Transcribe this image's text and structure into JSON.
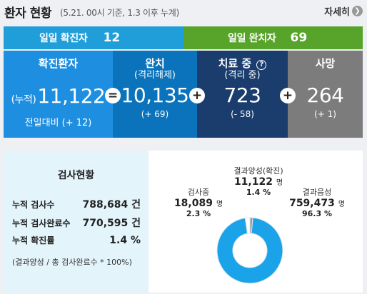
{
  "header": {
    "title": "환자 현황",
    "subtitle": "(5.21. 00시 기준, 1.3 이후 누계)",
    "detail_label": "자세히",
    "detail_icon": "chevron-right-icon"
  },
  "daily": {
    "confirmed_label": "일일 확진자",
    "confirmed_value": "12",
    "released_label": "일일 완치자",
    "released_value": "69"
  },
  "stats": {
    "confirmed": {
      "label": "확진환자",
      "prefix": "(누적)",
      "value": "11,122",
      "change": "전일대비 (+ 12)"
    },
    "released": {
      "label": "완치",
      "sub": "(격리해제)",
      "value": "10,135",
      "change": "(+ 69)"
    },
    "treating": {
      "label": "치료 중",
      "sub": "(격리 중)",
      "value": "723",
      "change": "(- 58)"
    },
    "deaths": {
      "label": "사망",
      "value": "264",
      "change": "(+ 1)"
    },
    "op_equals": "=",
    "op_plus": "+",
    "help_symbol": "?"
  },
  "tests": {
    "title": "검사현황",
    "rows": [
      {
        "label": "누적 검사수",
        "value": "788,684 건"
      },
      {
        "label": "누적 검사완료수",
        "value": "770,595 건"
      },
      {
        "label": "누적 확진률",
        "value": "1.4 %"
      }
    ],
    "note": "(결과양성 / 총 검사완료수 * 100%)"
  },
  "chart_data": {
    "type": "pie",
    "slices": [
      {
        "label": "결과양성(확진)",
        "value": 11122,
        "unit": "명",
        "percent": "1.4 %",
        "color": "#9a9a9a"
      },
      {
        "label": "검사중",
        "value": 18089,
        "unit": "명",
        "percent": "2.3 %",
        "color": "#ffffff"
      },
      {
        "label": "결과음성",
        "value": 759473,
        "unit": "명",
        "percent": "96.3 %",
        "color": "#1aa3e8"
      }
    ],
    "display_values": [
      "11,122",
      "18,089",
      "759,473"
    ]
  }
}
